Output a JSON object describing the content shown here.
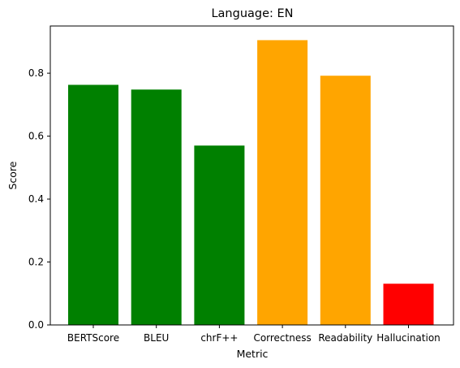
{
  "chart_data": {
    "type": "bar",
    "title": "Language: EN",
    "xlabel": "Metric",
    "ylabel": "Score",
    "categories": [
      "BERTScore",
      "BLEU",
      "chrF++",
      "Correctness",
      "Readability",
      "Hallucination"
    ],
    "values": [
      0.763,
      0.748,
      0.57,
      0.905,
      0.792,
      0.131
    ],
    "colors": [
      "#008000",
      "#008000",
      "#008000",
      "#ffa500",
      "#ffa500",
      "#ff0000"
    ],
    "ylim": [
      0,
      0.95
    ],
    "yticks": [
      0.0,
      0.2,
      0.4,
      0.6,
      0.8
    ],
    "ytick_labels": [
      "0.0",
      "0.2",
      "0.4",
      "0.6",
      "0.8"
    ],
    "grid": false,
    "legend": "none"
  }
}
